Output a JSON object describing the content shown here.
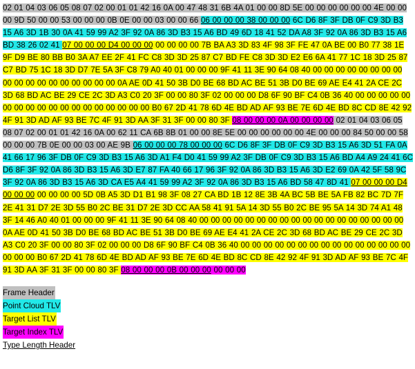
{
  "segments": [
    {
      "t": "02 01 04 03 06 05 08 07 02 00 01 01 42 16 0A 00 47 48 31 6B 4A 01 00 00 8D 5E 00 00 00 00 00 00 4E 00 00 00 9D 50 00 00 53 00 00 00 0B 0E 00 00 03 00 00 66 ",
      "c": "frame",
      "u": false
    },
    {
      "t": "06 00 00 00 38 00 00 00",
      "c": "pc",
      "u": true
    },
    {
      "t": " 6C D6 8F 3F DB 0F C9 3D B3 15 A6 3D 1B 30 0A 41 59 99 A2 3F 92 0A 86 3D B3 15 A6 BD 49 6D 18 41 52 DA A8 3F 92 0A 86 3D B3 15 A6 BD 38 26 02 41 ",
      "c": "pc",
      "u": false
    },
    {
      "t": "07 00 00 00 D4 00 00 00",
      "c": "tl",
      "u": true
    },
    {
      "t": " 00 00 00 00 7B BA A3 3D 83 4F 98 3F FE 47 0A BE 00 B0 77 38 1E 9F D9 BE 80 BB B0 3A A7 EE 2F 41 FC C8 3D 3D 25 87 C7 BD FE C8 3D 3D E2 E6 6A 41 77 1C 18 3D 25 87 C7 BD 75 1C 18 3D D7 7E 5A 3F C8 79 A0 40 01 00 00 00 9F 41 11 3E 90 64 08 40 00 00 00 00 00 00 00 00 00 00 00 00 00 00 00 00 00 00 0A AE 0D 41 50 3B D0 BE 68 BD AC BE 51 3B D0 BE 69 AE E4 41 2A CE 2C 3D 68 BD AC BE 29 CE 2C 3D A3 C0 20 3F 00 00 80 3F 02 00 00 00 D8 6F 90 BF C4 0B 36 40 00 00 00 00 00 00 00 00 00 00 00 00 00 00 00 00 00 00 B0 67 2D 41 78 6D 4E BD AD AF 93 BE 7E 6D 4E BD 8C CD 8E 42 92 4F 91 3D AD AF 93 BE 7C 4F 91 3D AA 3F 31 3F 00 00 80 3F ",
      "c": "tl",
      "u": false
    },
    {
      "t": "08 00 00 00 0A 00 00 00 00",
      "c": "ti",
      "u": true
    },
    {
      "t": " 02 01 04 03 06 05 08 07 02 00 01 01 42 16 0A 00 62 11 CA 6B 8B 01 00 00 8E 5E 00 00 00 00 00 00 4E 00 00 00 84 50 00 00 58 00 00 00 7B 0E 00 00 03 00 AE 9B ",
      "c": "frame",
      "u": false
    },
    {
      "t": "06 00 00 00 78 00 00 00",
      "c": "pc",
      "u": true
    },
    {
      "t": " 6C D6 8F 3F DB 0F C9 3D B3 15 A6 3D 51 FA 0A 41 66 17 96 3F DB 0F C9 3D B3 15 A6 3D A1 F4 D0 41 59 99 A2 3F DB 0F C9 3D B3 15 A6 BD A4 A9 24 41 6C D6 8F 3F 92 0A 86 3D B3 15 A6 3D E7 87 FA 40 66 17 96 3F 92 0A 86 3D B3 15 A6 3D E2 69 0A 42 5F 58 9C 3F 92 0A 86 3D B3 15 A6 3D CA E5 A4 41 59 99 A2 3F 92 0A 86 3D B3 15 A6 BD 58 47 8D 41 ",
      "c": "pc",
      "u": false
    },
    {
      "t": "07 00 00 00 D4 00 00 00",
      "c": "tl",
      "u": true
    },
    {
      "t": " 00 00 00 00 5D 0B A5 3D D1 B1 98 3F 08 27 CA BD 1B 12 8E 3B 4A BC 5B BE 5A FB 82 BC 7D 7F 2E 41 31 D7 2E 3D 55 B0 2C BE 31 D7 2E 3D CC AA 58 41 91 5A 14 3D 55 B0 2C BE 95 5A 14 3D 74 A1 48 3F 14 46 A0 40 01 00 00 00 9F 41 11 3E 90 64 08 40 00 00 00 00 00 00 00 00 00 00 00 00 00 00 00 00 00 00 0A AE 0D 41 50 3B D0 BE 68 BD AC BE 51 3B D0 BE 69 AE E4 41 2A CE 2C 3D 68 BD AC BE 29 CE 2C 3D A3 C0 20 3F 00 00 80 3F 02 00 00 00 D8 6F 90 BF C4 0B 36 40 00 00 00 00 00 00 00 00 00 00 00 00 00 00 00 00 00 00 B0 67 2D 41 78 6D 4E BD AD AF 93 BE 7E 6D 4E BD 8C CD 8E 42 92 4F 91 3D AD AF 93 BE 7C 4F 91 3D AA 3F 31 3F 00 00 80 3F ",
      "c": "tl",
      "u": false
    },
    {
      "t": "08 00 00 00 0B 00 00 00",
      "c": "ti",
      "u": true
    },
    {
      "t": " 00 00 00",
      "c": "ti",
      "u": false
    }
  ],
  "legend": {
    "frame_header": "Frame Header",
    "point_cloud_tlv": "Point Cloud TLV",
    "target_list_tlv": "Target List TLV",
    "target_index_tlv": "Target Index TLV",
    "type_length_header": "Type Length Header"
  },
  "colors": {
    "frame_header": "#c0c0c0",
    "point_cloud": "#22e8e8",
    "target_list": "#ffff00",
    "target_index": "#ff00ff"
  }
}
